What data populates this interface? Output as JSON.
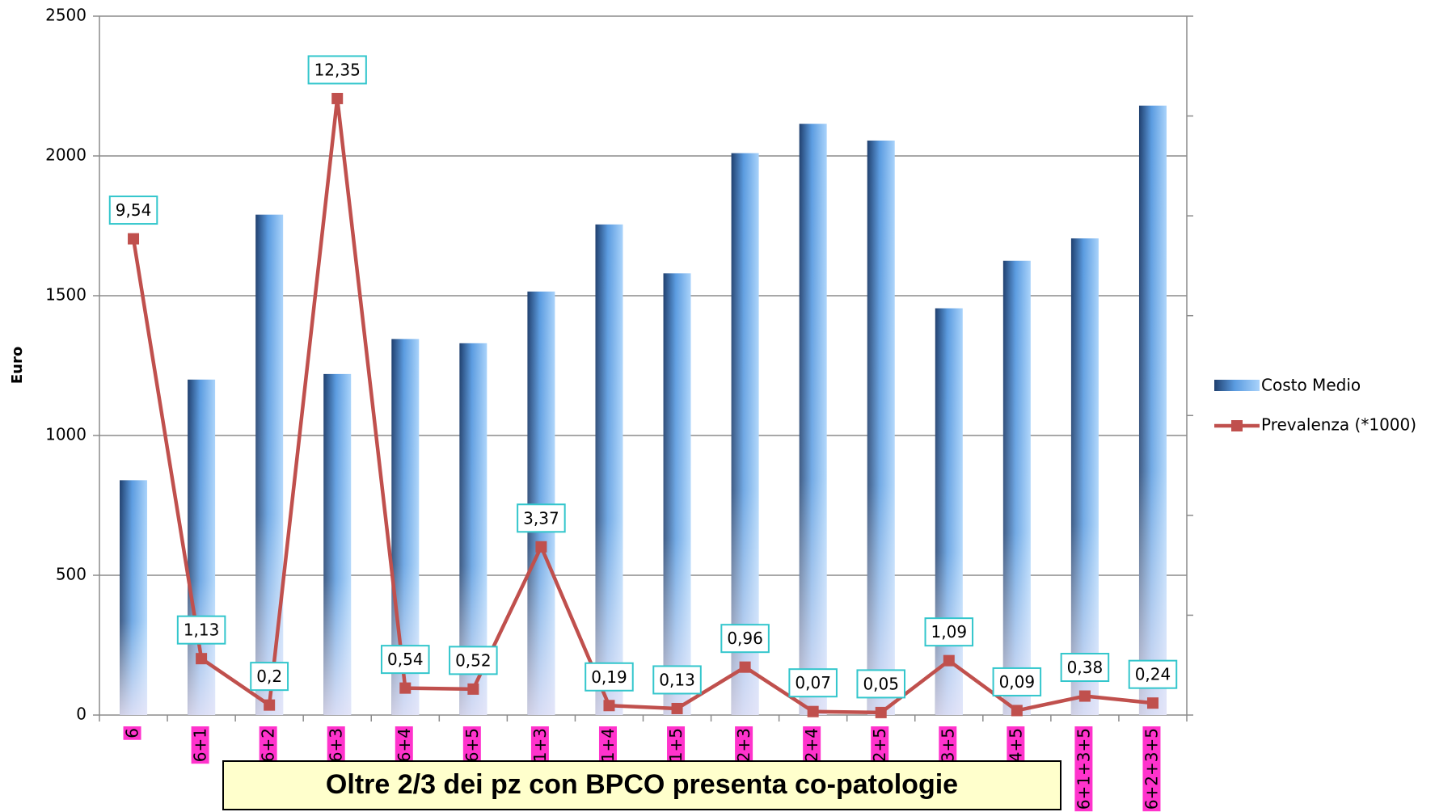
{
  "chart_data": {
    "type": "bar-line",
    "y_label": "Euro",
    "annotation": "Oltre 2/3 dei pz con BPCO presenta co-patologie",
    "categories": [
      "6",
      "6+1",
      "6+2",
      "6+3",
      "6+4",
      "6+5",
      "1+3",
      "1+4",
      "1+5",
      "2+3",
      "2+4",
      "2+5",
      "3+5",
      "4+5",
      "6+1+3+5",
      "6+2+3+5"
    ],
    "series": [
      {
        "name": "Costo Medio",
        "type": "bar",
        "color": "#5a9be0",
        "values": [
          840,
          1200,
          1790,
          1220,
          1345,
          1330,
          1515,
          1755,
          1580,
          2010,
          2115,
          2055,
          1455,
          1625,
          1705,
          2180
        ]
      },
      {
        "name": "Prevalenza (*1000)",
        "type": "line",
        "axis": "y2",
        "color": "#c0504d",
        "values": [
          9.54,
          1.13,
          0.2,
          12.35,
          0.54,
          0.52,
          3.37,
          0.19,
          0.13,
          0.96,
          0.07,
          0.05,
          1.09,
          0.09,
          0.38,
          0.24
        ],
        "value_labels": [
          "9,54",
          "1,13",
          "0,2",
          "12,35",
          "0,54",
          "0,52",
          "3,37",
          "0,19",
          "0,13",
          "0,96",
          "0,07",
          "0,05",
          "1,09",
          "0,09",
          "0,38",
          "0,24"
        ]
      }
    ],
    "ylim": [
      0,
      2500
    ],
    "yticks": [
      0,
      500,
      1000,
      1500,
      2000,
      2500
    ],
    "y2lim": [
      0,
      14
    ],
    "y2ticks": [
      0,
      2,
      4,
      6,
      8,
      10,
      12,
      14
    ],
    "grid": true,
    "legend": "right"
  }
}
